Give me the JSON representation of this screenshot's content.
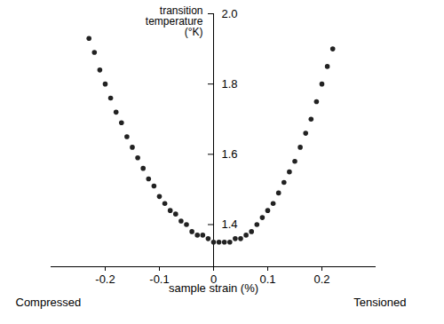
{
  "chart_data": {
    "type": "scatter",
    "x_label": "sample strain (%)",
    "y_label": "transition\ntemperature\n(°K)",
    "annotations": [
      "Compressed",
      "Tensioned"
    ],
    "color": "#222222",
    "marker": "circle",
    "x": [
      -0.23,
      -0.22,
      -0.21,
      -0.2,
      -0.19,
      -0.18,
      -0.17,
      -0.16,
      -0.15,
      -0.14,
      -0.13,
      -0.12,
      -0.11,
      -0.1,
      -0.09,
      -0.08,
      -0.07,
      -0.06,
      -0.05,
      -0.04,
      -0.03,
      -0.02,
      -0.01,
      0.0,
      0.01,
      0.02,
      0.03,
      0.04,
      0.05,
      0.06,
      0.07,
      0.08,
      0.09,
      0.1,
      0.11,
      0.12,
      0.13,
      0.14,
      0.15,
      0.16,
      0.17,
      0.18,
      0.19,
      0.2,
      0.21,
      0.22
    ],
    "values": [
      1.93,
      1.89,
      1.84,
      1.8,
      1.76,
      1.72,
      1.69,
      1.65,
      1.62,
      1.59,
      1.56,
      1.53,
      1.51,
      1.48,
      1.46,
      1.44,
      1.43,
      1.41,
      1.4,
      1.38,
      1.37,
      1.37,
      1.36,
      1.35,
      1.35,
      1.35,
      1.35,
      1.36,
      1.36,
      1.37,
      1.38,
      1.4,
      1.42,
      1.44,
      1.46,
      1.49,
      1.52,
      1.55,
      1.58,
      1.62,
      1.66,
      1.7,
      1.75,
      1.8,
      1.85,
      1.9
    ],
    "xlim": [
      -0.3,
      0.3
    ],
    "xticks": [
      -0.2,
      -0.1,
      0,
      0.1,
      0.2
    ],
    "ylim": [
      1.28,
      2.0
    ],
    "yticks": [
      1.4,
      1.6,
      1.8,
      {
        "value": 2,
        "label": "2.0"
      }
    ],
    "grid": false
  }
}
